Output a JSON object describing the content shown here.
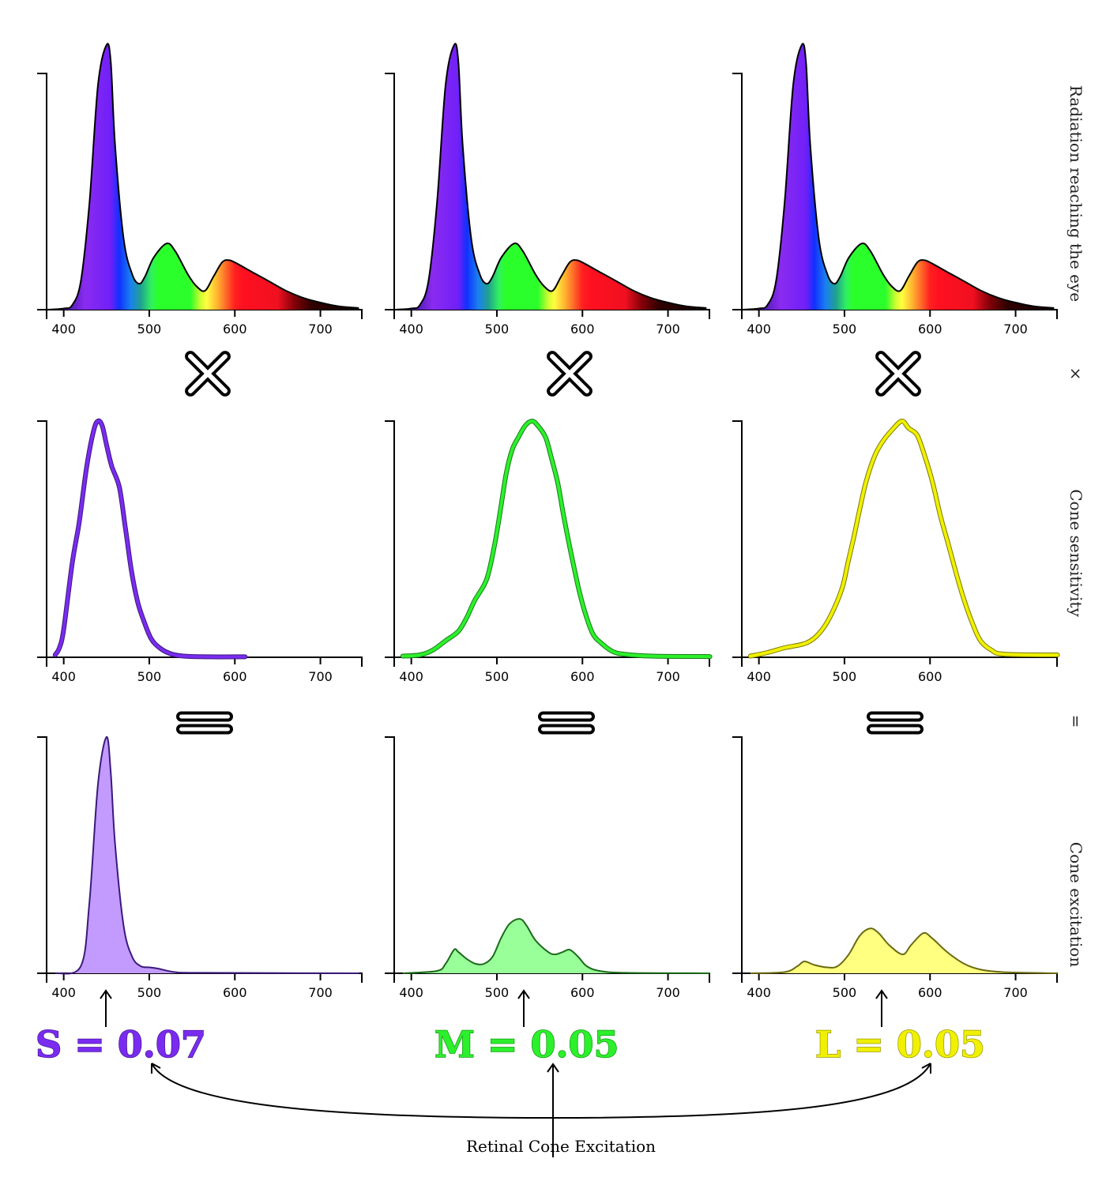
{
  "row_labels": {
    "radiation": "Radiation reaching the eye",
    "times": "×",
    "sensitivity": "Cone sensitivity",
    "equals": "=",
    "excitation": "Cone excitation"
  },
  "caption": "Retinal Cone Excitation",
  "results": [
    {
      "letter": "S",
      "text": "S = 0.07",
      "value": 0.07,
      "color": "#7a2bf0",
      "stroke": "#4a1a9a"
    },
    {
      "letter": "M",
      "text": "M = 0.05",
      "value": 0.05,
      "color": "#2bf02b",
      "stroke": "#1a9a1a"
    },
    {
      "letter": "L",
      "text": "L = 0.05",
      "value": 0.05,
      "color": "#f0f000",
      "stroke": "#9a9a00"
    }
  ],
  "icons": {
    "multiply": "multiply-icon",
    "equals": "equals-icon"
  },
  "chart_data": [
    {
      "type": "area",
      "row": "radiation",
      "xlim": [
        380,
        749
      ],
      "ylim": [
        0,
        1
      ],
      "x_ticks": [
        400,
        500,
        600,
        700
      ],
      "fill": "spectrum-gradient",
      "stroke": "#000000",
      "x": [
        380,
        400,
        410,
        420,
        430,
        440,
        450,
        455,
        460,
        470,
        480,
        488,
        495,
        505,
        520,
        530,
        545,
        555,
        565,
        575,
        585,
        592,
        600,
        620,
        640,
        660,
        680,
        700,
        720,
        745
      ],
      "y": [
        0,
        0.005,
        0.02,
        0.12,
        0.45,
        0.95,
        1.12,
        1.05,
        0.7,
        0.3,
        0.15,
        0.11,
        0.14,
        0.22,
        0.28,
        0.25,
        0.15,
        0.1,
        0.08,
        0.14,
        0.2,
        0.21,
        0.2,
        0.16,
        0.12,
        0.08,
        0.05,
        0.03,
        0.015,
        0.007
      ]
    },
    {
      "type": "line",
      "row": "sensitivity",
      "cone": "S",
      "xlim": [
        380,
        749
      ],
      "ylim": [
        0,
        1
      ],
      "x_ticks": [
        400,
        500,
        600,
        700
      ],
      "color": "#7a2bf0",
      "stroke": "#3a1a7a",
      "x": [
        390,
        395,
        400,
        410,
        418,
        427,
        435,
        440,
        445,
        450,
        456,
        465,
        472,
        479,
        486,
        493,
        502,
        512,
        525,
        540,
        570,
        612
      ],
      "y": [
        0.01,
        0.04,
        0.12,
        0.4,
        0.57,
        0.81,
        0.96,
        1.0,
        0.98,
        0.9,
        0.81,
        0.72,
        0.55,
        0.37,
        0.24,
        0.16,
        0.08,
        0.04,
        0.015,
        0.005,
        0.002,
        0.002
      ]
    },
    {
      "type": "line",
      "row": "sensitivity",
      "cone": "M",
      "xlim": [
        380,
        749
      ],
      "ylim": [
        0,
        1
      ],
      "x_ticks": [
        400,
        500,
        600,
        700
      ],
      "color": "#2bf02b",
      "stroke": "#1a7a1a",
      "x": [
        390,
        410,
        425,
        440,
        455,
        465,
        474,
        488,
        497,
        504,
        511,
        518,
        525,
        533,
        541,
        548,
        557,
        564,
        571,
        578,
        585,
        595,
        603,
        612,
        622,
        635,
        649,
        680,
        749
      ],
      "y": [
        0.005,
        0.01,
        0.03,
        0.07,
        0.11,
        0.17,
        0.24,
        0.33,
        0.47,
        0.62,
        0.78,
        0.88,
        0.93,
        0.98,
        1.0,
        0.98,
        0.93,
        0.84,
        0.74,
        0.6,
        0.47,
        0.3,
        0.19,
        0.1,
        0.06,
        0.025,
        0.013,
        0.005,
        0.003
      ]
    },
    {
      "type": "line",
      "row": "sensitivity",
      "cone": "L",
      "xlim": [
        380,
        749
      ],
      "ylim": [
        0,
        1
      ],
      "x_ticks": [
        400,
        500,
        600
      ],
      "color": "#f0f000",
      "stroke": "#7a7a00",
      "x": [
        390,
        410,
        430,
        455,
        470,
        483,
        497,
        504,
        511,
        518,
        525,
        535,
        544,
        555,
        567,
        575,
        585,
        594,
        603,
        612,
        622,
        631,
        640,
        650,
        659,
        672,
        687,
        749
      ],
      "y": [
        0.005,
        0.02,
        0.04,
        0.06,
        0.1,
        0.17,
        0.29,
        0.4,
        0.51,
        0.63,
        0.74,
        0.85,
        0.91,
        0.96,
        1.0,
        0.97,
        0.94,
        0.85,
        0.74,
        0.6,
        0.47,
        0.35,
        0.24,
        0.14,
        0.07,
        0.03,
        0.013,
        0.01
      ]
    },
    {
      "type": "area",
      "row": "excitation",
      "cone": "S",
      "xlim": [
        380,
        749
      ],
      "ylim": [
        0,
        1
      ],
      "x_ticks": [
        400,
        500,
        600,
        700
      ],
      "color": "#c39bff",
      "stroke": "#3a1a7a",
      "x": [
        390,
        420,
        430,
        440,
        450,
        455,
        460,
        470,
        480,
        490,
        500,
        510,
        530,
        560,
        745
      ],
      "y": [
        0,
        0.03,
        0.3,
        0.8,
        1.0,
        0.85,
        0.55,
        0.2,
        0.07,
        0.03,
        0.025,
        0.02,
        0.005,
        0.002,
        0
      ]
    },
    {
      "type": "area",
      "row": "excitation",
      "cone": "M",
      "xlim": [
        380,
        749
      ],
      "ylim": [
        0,
        1
      ],
      "x_ticks": [
        400,
        500,
        600,
        700
      ],
      "color": "#99ff99",
      "stroke": "#1a6a1a",
      "x": [
        390,
        430,
        440,
        450,
        455,
        465,
        475,
        485,
        495,
        505,
        515,
        527,
        535,
        545,
        560,
        568,
        577,
        585,
        595,
        605,
        620,
        650,
        749
      ],
      "y": [
        0,
        0.01,
        0.04,
        0.1,
        0.09,
        0.06,
        0.04,
        0.04,
        0.07,
        0.15,
        0.21,
        0.23,
        0.2,
        0.14,
        0.09,
        0.08,
        0.09,
        0.1,
        0.07,
        0.03,
        0.01,
        0.002,
        0
      ]
    },
    {
      "type": "area",
      "row": "excitation",
      "cone": "L",
      "xlim": [
        380,
        749
      ],
      "ylim": [
        0,
        1
      ],
      "x_ticks": [
        400,
        500,
        600,
        700
      ],
      "color": "#ffff80",
      "stroke": "#6a6a10",
      "x": [
        390,
        430,
        445,
        453,
        465,
        480,
        492,
        505,
        518,
        530,
        540,
        552,
        568,
        578,
        592,
        602,
        620,
        640,
        660,
        690,
        749
      ],
      "y": [
        0,
        0.005,
        0.03,
        0.05,
        0.035,
        0.025,
        0.03,
        0.08,
        0.16,
        0.19,
        0.17,
        0.12,
        0.08,
        0.12,
        0.17,
        0.15,
        0.09,
        0.04,
        0.015,
        0.004,
        0
      ]
    }
  ]
}
